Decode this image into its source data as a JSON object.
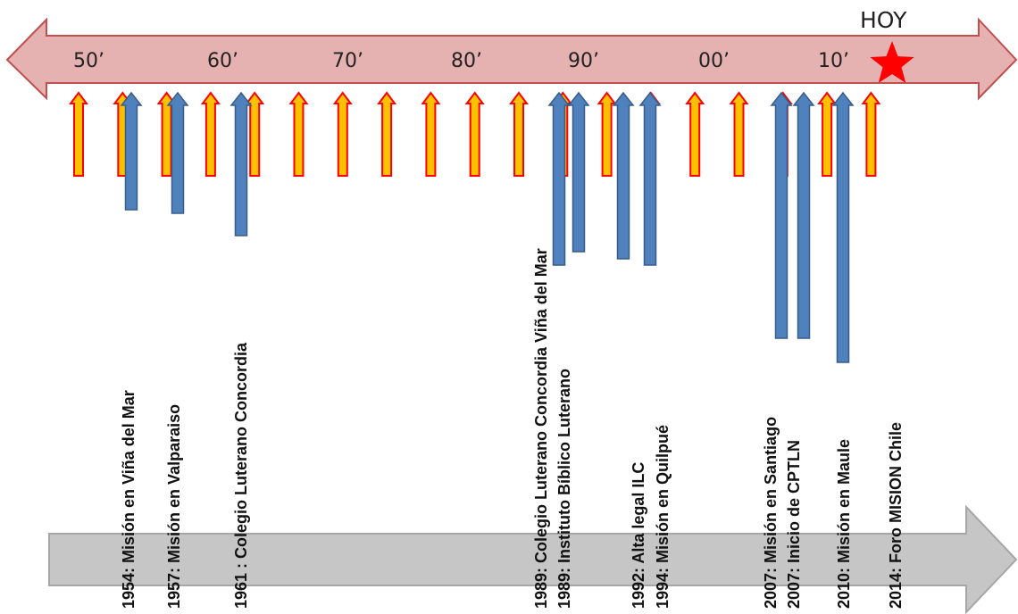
{
  "timeline": {
    "today_label": "HOY",
    "decades": [
      "50’",
      "60’",
      "70’",
      "80’",
      "90’",
      "00’",
      "10’"
    ],
    "tick_count": 19
  },
  "events": [
    {
      "year": "1954",
      "label": "Misión en Viña del Mar"
    },
    {
      "year": "1957",
      "label": "Misión en Valparaiso"
    },
    {
      "year": "1961",
      "label": "Colegio Luterano Concordia"
    },
    {
      "year": "1989",
      "label": "Colegio Luterano Concordia Viña del Mar"
    },
    {
      "year": "1989",
      "label": "Instituto Bíblico Luterano"
    },
    {
      "year": "1992",
      "label": "Alta legal ILC"
    },
    {
      "year": "1994",
      "label": "Misión en Quilpué"
    },
    {
      "year": "2007",
      "label": "Misión en Santiago"
    },
    {
      "year": "2007",
      "label": "Inicio de CPTLN"
    },
    {
      "year": "2010",
      "label": "Misión en Maule"
    },
    {
      "year": "2014",
      "label": "Foro MISION Chile"
    }
  ],
  "colors": {
    "band_fill": "#e6b1b1",
    "band_stroke": "#c0504d",
    "tick_fill": "#ffc000",
    "tick_stroke": "#ff0000",
    "milestone_fill": "#4f81bd",
    "milestone_stroke": "#385d8a",
    "bottom_fill": "#c6c6c6",
    "bottom_stroke": "#a6a6a6",
    "star": "#ff0000"
  }
}
